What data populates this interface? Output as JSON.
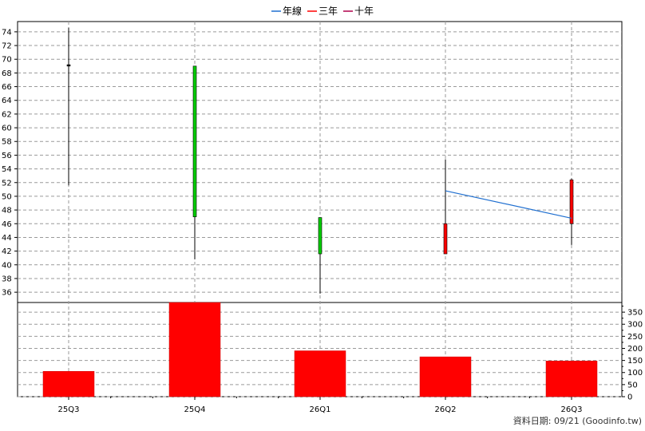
{
  "legend": [
    {
      "label": "年線",
      "color": "#1f6fd0"
    },
    {
      "label": "三年",
      "color": "#ff0000"
    },
    {
      "label": "十年",
      "color": "#b0004a"
    }
  ],
  "footer": "資料日期: 09/21  (Goodinfo.tw)",
  "chart_data": {
    "type": "candlestick+bar",
    "categories": [
      "25Q3",
      "25Q4",
      "26Q1",
      "26Q2",
      "26Q3"
    ],
    "price_axis": {
      "ylim": [
        34.5,
        75.5
      ],
      "ticks": [
        36,
        38,
        40,
        42,
        44,
        46,
        48,
        50,
        52,
        54,
        56,
        58,
        60,
        62,
        64,
        66,
        68,
        70,
        72,
        74
      ]
    },
    "candles": [
      {
        "period": "25Q3",
        "open": 69.0,
        "close": 69.2,
        "high": 74.6,
        "low": 51.6,
        "color": "#000000"
      },
      {
        "period": "25Q4",
        "open": 69.0,
        "close": 47.0,
        "high": 69.0,
        "low": 40.8,
        "color": "#00cc00"
      },
      {
        "period": "26Q1",
        "open": 46.9,
        "close": 41.6,
        "high": 46.9,
        "low": 35.8,
        "color": "#00cc00"
      },
      {
        "period": "26Q2",
        "open": 41.6,
        "close": 46.0,
        "high": 55.4,
        "low": 41.6,
        "color": "#ff0000"
      },
      {
        "period": "26Q3",
        "open": 46.0,
        "close": 52.4,
        "high": 52.6,
        "low": 42.9,
        "color": "#ff0000"
      }
    ],
    "annual_line": {
      "name": "年線",
      "color": "#1f6fd0",
      "points": [
        {
          "period": "26Q2",
          "value": 50.8
        },
        {
          "period": "26Q3",
          "value": 46.8
        }
      ]
    },
    "volume_axis": {
      "ylim": [
        0,
        390
      ],
      "ticks": [
        0,
        50,
        100,
        150,
        200,
        250,
        300,
        350
      ]
    },
    "volumes": [
      {
        "period": "25Q3",
        "value": 105
      },
      {
        "period": "25Q4",
        "value": 390
      },
      {
        "period": "26Q1",
        "value": 190
      },
      {
        "period": "26Q2",
        "value": 165
      },
      {
        "period": "26Q3",
        "value": 148
      }
    ],
    "volume_color": "#ff0000",
    "grid": true
  }
}
